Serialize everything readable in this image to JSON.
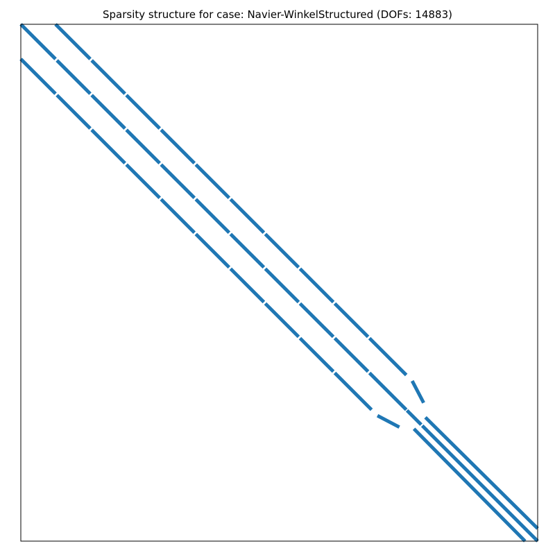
{
  "chart_data": {
    "type": "scatter",
    "title": "Sparsity structure for case: Navier-WinkelStructured (DOFs: 14883)",
    "xlim": [
      0,
      14883
    ],
    "ylim": [
      0,
      14883
    ],
    "y_inverted": true,
    "ticks_visible": false,
    "grid": false,
    "marker_color": "#1f77b4",
    "frame_color": "#000000",
    "bands": [
      {
        "name": "main-diagonal",
        "segments": [
          [
            0,
            1000,
            0,
            1000
          ],
          [
            1040,
            2000,
            1040,
            2000
          ],
          [
            2040,
            3000,
            2040,
            3000
          ],
          [
            3040,
            4000,
            3040,
            4000
          ],
          [
            4040,
            5000,
            4040,
            5000
          ],
          [
            5040,
            6000,
            5040,
            6000
          ],
          [
            6040,
            7000,
            6040,
            7000
          ],
          [
            7040,
            8000,
            7040,
            8000
          ],
          [
            8040,
            9000,
            8040,
            9000
          ],
          [
            9040,
            10000,
            9040,
            10000
          ],
          [
            10040,
            11100,
            10040,
            11100
          ],
          [
            11120,
            11530,
            11120,
            11530
          ],
          [
            11560,
            14883,
            11560,
            14883
          ]
        ]
      },
      {
        "name": "upper-off-diagonal",
        "segments": [
          [
            1000,
            2000,
            0,
            1000
          ],
          [
            2040,
            3000,
            1040,
            2000
          ],
          [
            3040,
            4000,
            2040,
            3000
          ],
          [
            4040,
            5000,
            3040,
            4000
          ],
          [
            5040,
            6000,
            4040,
            5000
          ],
          [
            6040,
            7000,
            5040,
            6000
          ],
          [
            7040,
            8000,
            6040,
            7000
          ],
          [
            8040,
            9000,
            7040,
            8000
          ],
          [
            9040,
            10000,
            8040,
            9000
          ],
          [
            10040,
            11100,
            9040,
            10100
          ],
          [
            11270,
            11600,
            10270,
            10900
          ],
          [
            11650,
            14883,
            11320,
            14520
          ]
        ]
      },
      {
        "name": "lower-off-diagonal",
        "segments": [
          [
            0,
            1000,
            1000,
            2000
          ],
          [
            1040,
            2000,
            2040,
            3000
          ],
          [
            2040,
            3000,
            3040,
            4000
          ],
          [
            3040,
            4000,
            4040,
            5000
          ],
          [
            4040,
            5000,
            5040,
            6000
          ],
          [
            5040,
            6000,
            6040,
            7000
          ],
          [
            6040,
            7000,
            7040,
            8000
          ],
          [
            7040,
            8000,
            8040,
            9000
          ],
          [
            8040,
            9000,
            9040,
            10000
          ],
          [
            9040,
            10100,
            10040,
            11100
          ],
          [
            10270,
            10900,
            11270,
            11600
          ],
          [
            11320,
            14520,
            11650,
            14883
          ]
        ]
      }
    ]
  }
}
